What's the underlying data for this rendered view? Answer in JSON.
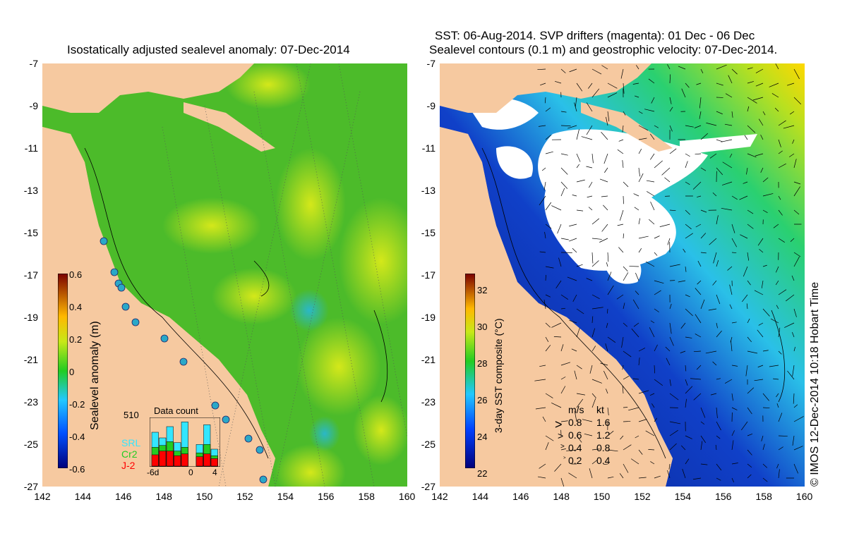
{
  "left": {
    "title": "Isostatically adjusted sealevel anomaly: 07-Dec-2014",
    "colorbar_label": "Sealevel anomaly (m)",
    "colorbar_ticks": [
      "0.6",
      "0.4",
      "0.2",
      "0",
      "-0.2",
      "-0.4",
      "-0.6"
    ],
    "inset": {
      "title": "Data count",
      "max_label": "510",
      "x_labels": [
        "-6d",
        "0",
        "4"
      ],
      "legend": [
        {
          "label": "SRL",
          "color": "#33e6ff"
        },
        {
          "label": "Cr2",
          "color": "#22cc22"
        },
        {
          "label": "J-2",
          "color": "#ff0000"
        }
      ],
      "bars": [
        {
          "srl": 360,
          "cr2": 200,
          "j2": 120
        },
        {
          "srl": 300,
          "cr2": 220,
          "j2": 160
        },
        {
          "srl": 420,
          "cr2": 260,
          "j2": 160
        },
        {
          "srl": 250,
          "cr2": 160,
          "j2": 110
        },
        {
          "srl": 470,
          "cr2": 200,
          "j2": 130
        },
        {
          "srl": 0,
          "cr2": 0,
          "j2": 0
        },
        {
          "srl": 230,
          "cr2": 140,
          "j2": 100
        },
        {
          "srl": 440,
          "cr2": 230,
          "j2": 130
        },
        {
          "srl": 180,
          "cr2": 110,
          "j2": 80
        }
      ]
    }
  },
  "right": {
    "title_line1": "SST: 06-Aug-2014. SVP drifters (magenta): 01 Dec - 06 Dec",
    "title_line2": "Sealevel contours (0.1 m) and geostrophic velocity: 07-Dec-2014.",
    "colorbar_label": "3-day SST composite (°C)",
    "colorbar_ticks": [
      "32",
      "30",
      "28",
      "26",
      "24",
      "22"
    ],
    "velocity_legend": {
      "header_ms": "m/s",
      "header_kt": "kt",
      "rows": [
        {
          "ms": "0.8",
          "kt": "1.6"
        },
        {
          "ms": "0.6",
          "kt": "1.2"
        },
        {
          "ms": "0.4",
          "kt": "0.8"
        },
        {
          "ms": "0.2",
          "kt": "0.4"
        }
      ]
    }
  },
  "axes": {
    "y_ticks": [
      "-7",
      "-9",
      "-11",
      "-13",
      "-15",
      "-17",
      "-19",
      "-21",
      "-23",
      "-25",
      "-27"
    ],
    "x_ticks": [
      "142",
      "144",
      "146",
      "148",
      "150",
      "152",
      "154",
      "156",
      "158",
      "160"
    ]
  },
  "credit": "© IMOS 12-Dec-2014 10:18 Hobart Time",
  "colors": {
    "land": "#f6c9a0",
    "anomaly_green": "#44bb22",
    "sst_deep_blue": "#0a2a9a",
    "cloud": "#ffffff"
  }
}
